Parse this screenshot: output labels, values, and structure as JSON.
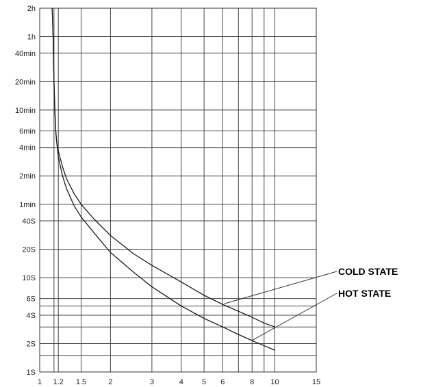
{
  "chart_data": {
    "type": "line",
    "title": "",
    "xlabel": "",
    "ylabel": "",
    "x_scale": "log",
    "y_scale": "log",
    "xlim": [
      1,
      15
    ],
    "ylim_seconds": [
      1,
      7200
    ],
    "grid": true,
    "x_ticks": [
      {
        "value": 1,
        "label": "1"
      },
      {
        "value": 1.2,
        "label": "1.2"
      },
      {
        "value": 1.5,
        "label": "1.5"
      },
      {
        "value": 2,
        "label": "2"
      },
      {
        "value": 3,
        "label": "3"
      },
      {
        "value": 4,
        "label": "4"
      },
      {
        "value": 5,
        "label": "5"
      },
      {
        "value": 6,
        "label": "6"
      },
      {
        "value": 8,
        "label": "8"
      },
      {
        "value": 10,
        "label": "10"
      },
      {
        "value": 15,
        "label": "15"
      }
    ],
    "x_grid_only": [
      1.15,
      7,
      9
    ],
    "y_ticks": [
      {
        "value": 1,
        "label": "1S"
      },
      {
        "value": 2,
        "label": "2S"
      },
      {
        "value": 4,
        "label": "4S"
      },
      {
        "value": 6,
        "label": "6S"
      },
      {
        "value": 10,
        "label": "10S"
      },
      {
        "value": 20,
        "label": "20S"
      },
      {
        "value": 40,
        "label": "40S"
      },
      {
        "value": 60,
        "label": "1min"
      },
      {
        "value": 120,
        "label": "2min"
      },
      {
        "value": 240,
        "label": "4min"
      },
      {
        "value": 360,
        "label": "6min"
      },
      {
        "value": 600,
        "label": "10min"
      },
      {
        "value": 1200,
        "label": "20min"
      },
      {
        "value": 2400,
        "label": "40min"
      },
      {
        "value": 3600,
        "label": "1h"
      },
      {
        "value": 7200,
        "label": "2h"
      }
    ],
    "y_grid_only": [
      1.5,
      3,
      5
    ],
    "series": [
      {
        "name": "COLD STATE",
        "color": "#1a1a1a",
        "points": [
          [
            1.13,
            7200
          ],
          [
            1.14,
            3600
          ],
          [
            1.15,
            1200
          ],
          [
            1.16,
            600
          ],
          [
            1.17,
            360
          ],
          [
            1.18,
            280
          ],
          [
            1.2,
            220
          ],
          [
            1.25,
            150
          ],
          [
            1.3,
            112
          ],
          [
            1.4,
            78
          ],
          [
            1.5,
            60
          ],
          [
            1.7,
            42
          ],
          [
            2,
            28
          ],
          [
            2.5,
            18
          ],
          [
            3,
            13.5
          ],
          [
            4,
            9
          ],
          [
            5,
            6.5
          ],
          [
            6,
            5.2
          ],
          [
            7,
            4.4
          ],
          [
            8,
            3.8
          ],
          [
            9,
            3.3
          ],
          [
            10,
            3
          ]
        ]
      },
      {
        "name": "HOT STATE",
        "color": "#1a1a1a",
        "points": [
          [
            1.13,
            7200
          ],
          [
            1.14,
            3600
          ],
          [
            1.15,
            1200
          ],
          [
            1.16,
            600
          ],
          [
            1.17,
            360
          ],
          [
            1.18,
            280
          ],
          [
            1.2,
            190
          ],
          [
            1.25,
            120
          ],
          [
            1.3,
            88
          ],
          [
            1.4,
            58
          ],
          [
            1.5,
            44
          ],
          [
            1.7,
            30
          ],
          [
            2,
            18.5
          ],
          [
            2.5,
            11.5
          ],
          [
            3,
            8
          ],
          [
            4,
            5
          ],
          [
            5,
            3.7
          ],
          [
            6,
            3
          ],
          [
            7,
            2.5
          ],
          [
            8,
            2.15
          ],
          [
            9,
            1.9
          ],
          [
            10,
            1.7
          ]
        ]
      }
    ],
    "annotations": [
      {
        "series": "COLD STATE",
        "text": "COLD STATE",
        "anchor_x": 6.1,
        "anchor_y": 5.3
      },
      {
        "series": "HOT STATE",
        "text": "HOT STATE",
        "anchor_x": 8.05,
        "anchor_y": 2.18
      }
    ]
  }
}
